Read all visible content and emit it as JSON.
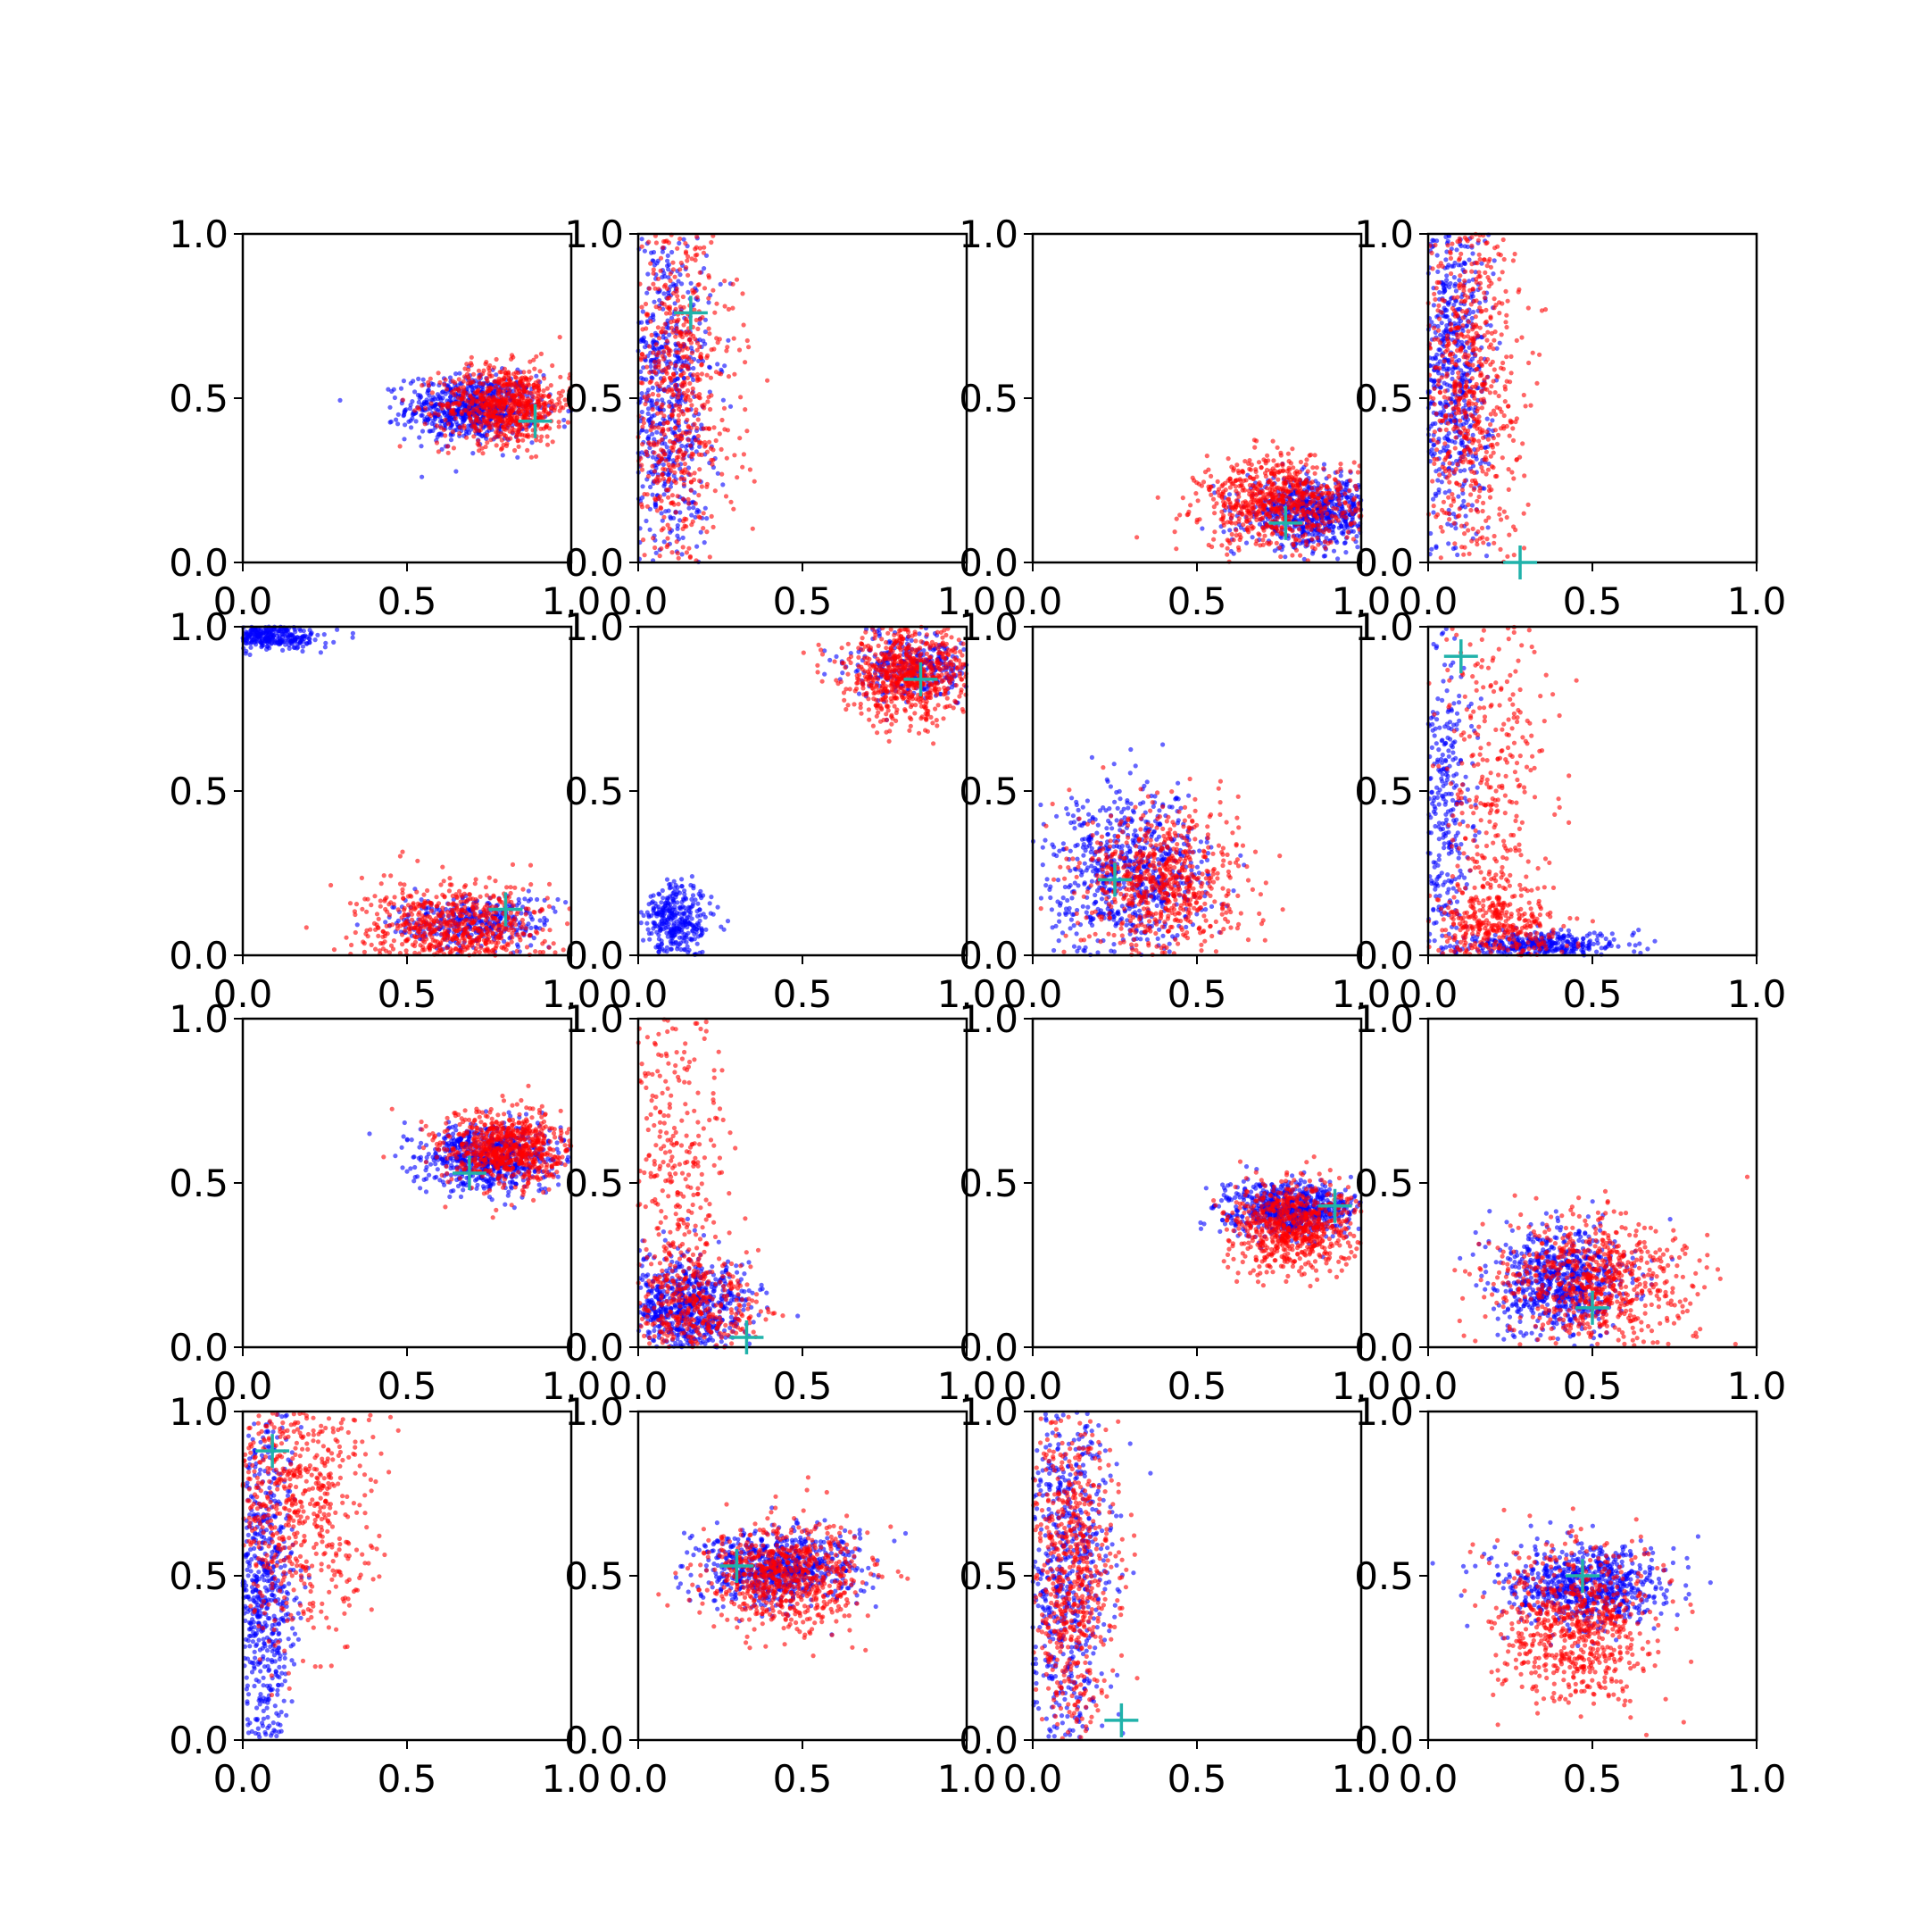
{
  "figure": {
    "rows": 4,
    "cols": 4,
    "xlim": [
      0,
      1
    ],
    "ylim": [
      0,
      1
    ],
    "ticks": [
      0.0,
      0.5,
      1.0
    ],
    "tick_labels": [
      "0.0",
      "0.5",
      "1.0"
    ]
  },
  "colors": {
    "series_a": "#0000ff",
    "series_b": "#ff0000",
    "marker": "#20b2aa",
    "axes": "#000000"
  },
  "chart_data": [
    {
      "type": "scatter",
      "xlim": [
        0,
        1
      ],
      "ylim": [
        0,
        1
      ],
      "series": [
        {
          "color": "#0000ff",
          "centers": [
            {
              "cx": 0.7,
              "cy": 0.47,
              "sx": 0.1,
              "sy": 0.05
            }
          ]
        },
        {
          "color": "#ff0000",
          "centers": [
            {
              "cx": 0.8,
              "cy": 0.48,
              "sx": 0.1,
              "sy": 0.06
            }
          ]
        }
      ],
      "marker_point": {
        "x": 0.89,
        "y": 0.43
      }
    },
    {
      "type": "scatter",
      "xlim": [
        0,
        1
      ],
      "ylim": [
        0,
        1
      ],
      "series": [
        {
          "color": "#0000ff",
          "centers": [
            {
              "cx": 0.08,
              "cy": 0.5,
              "sx": 0.07,
              "sy": 0.3
            }
          ]
        },
        {
          "color": "#ff0000",
          "centers": [
            {
              "cx": 0.12,
              "cy": 0.5,
              "sx": 0.09,
              "sy": 0.3
            }
          ]
        }
      ],
      "marker_point": {
        "x": 0.16,
        "y": 0.76
      }
    },
    {
      "type": "scatter",
      "xlim": [
        0,
        1
      ],
      "ylim": [
        0,
        1
      ],
      "series": [
        {
          "color": "#0000ff",
          "centers": [
            {
              "cx": 0.85,
              "cy": 0.15,
              "sx": 0.1,
              "sy": 0.05
            }
          ]
        },
        {
          "color": "#ff0000",
          "centers": [
            {
              "cx": 0.75,
              "cy": 0.18,
              "sx": 0.12,
              "sy": 0.07
            }
          ]
        }
      ],
      "marker_point": {
        "x": 0.77,
        "y": 0.12
      }
    },
    {
      "type": "scatter",
      "xlim": [
        0,
        1
      ],
      "ylim": [
        0,
        1
      ],
      "series": [
        {
          "color": "#0000ff",
          "centers": [
            {
              "cx": 0.07,
              "cy": 0.6,
              "sx": 0.06,
              "sy": 0.28
            }
          ]
        },
        {
          "color": "#ff0000",
          "centers": [
            {
              "cx": 0.12,
              "cy": 0.55,
              "sx": 0.08,
              "sy": 0.3
            }
          ]
        }
      ],
      "marker_point": {
        "x": 0.28,
        "y": 0.0
      }
    },
    {
      "type": "scatter",
      "xlim": [
        0,
        1
      ],
      "ylim": [
        0,
        1
      ],
      "series": [
        {
          "color": "#0000ff",
          "centers": [
            {
              "cx": 0.7,
              "cy": 0.1,
              "sx": 0.12,
              "sy": 0.04
            },
            {
              "cx": 0.08,
              "cy": 0.97,
              "sx": 0.08,
              "sy": 0.02
            }
          ]
        },
        {
          "color": "#ff0000",
          "centers": [
            {
              "cx": 0.65,
              "cy": 0.08,
              "sx": 0.14,
              "sy": 0.07
            }
          ]
        }
      ],
      "marker_point": {
        "x": 0.8,
        "y": 0.14
      }
    },
    {
      "type": "scatter",
      "xlim": [
        0,
        1
      ],
      "ylim": [
        0,
        1
      ],
      "series": [
        {
          "color": "#0000ff",
          "centers": [
            {
              "cx": 0.85,
              "cy": 0.88,
              "sx": 0.1,
              "sy": 0.05
            },
            {
              "cx": 0.12,
              "cy": 0.1,
              "sx": 0.05,
              "sy": 0.06
            }
          ]
        },
        {
          "color": "#ff0000",
          "centers": [
            {
              "cx": 0.82,
              "cy": 0.85,
              "sx": 0.1,
              "sy": 0.07
            }
          ]
        }
      ],
      "marker_point": {
        "x": 0.86,
        "y": 0.84
      }
    },
    {
      "type": "scatter",
      "xlim": [
        0,
        1
      ],
      "ylim": [
        0,
        1
      ],
      "series": [
        {
          "color": "#0000ff",
          "centers": [
            {
              "cx": 0.3,
              "cy": 0.25,
              "sx": 0.12,
              "sy": 0.12
            }
          ]
        },
        {
          "color": "#ff0000",
          "centers": [
            {
              "cx": 0.4,
              "cy": 0.22,
              "sx": 0.12,
              "sy": 0.12
            }
          ]
        }
      ],
      "marker_point": {
        "x": 0.25,
        "y": 0.23
      }
    },
    {
      "type": "scatter",
      "xlim": [
        0,
        1
      ],
      "ylim": [
        0,
        1
      ],
      "series": [
        {
          "color": "#0000ff",
          "centers": [
            {
              "cx": 0.05,
              "cy": 0.45,
              "sx": 0.04,
              "sy": 0.3
            },
            {
              "cx": 0.35,
              "cy": 0.03,
              "sx": 0.12,
              "sy": 0.02
            }
          ]
        },
        {
          "color": "#ff0000",
          "centers": [
            {
              "cx": 0.2,
              "cy": 0.5,
              "sx": 0.09,
              "sy": 0.3
            },
            {
              "cx": 0.2,
              "cy": 0.08,
              "sx": 0.1,
              "sy": 0.06
            }
          ]
        }
      ],
      "marker_point": {
        "x": 0.1,
        "y": 0.91
      }
    },
    {
      "type": "scatter",
      "xlim": [
        0,
        1
      ],
      "ylim": [
        0,
        1
      ],
      "series": [
        {
          "color": "#0000ff",
          "centers": [
            {
              "cx": 0.75,
              "cy": 0.58,
              "sx": 0.1,
              "sy": 0.05
            }
          ]
        },
        {
          "color": "#ff0000",
          "centers": [
            {
              "cx": 0.8,
              "cy": 0.6,
              "sx": 0.1,
              "sy": 0.06
            }
          ]
        }
      ],
      "marker_point": {
        "x": 0.69,
        "y": 0.53
      }
    },
    {
      "type": "scatter",
      "xlim": [
        0,
        1
      ],
      "ylim": [
        0,
        1
      ],
      "series": [
        {
          "color": "#0000ff",
          "centers": [
            {
              "cx": 0.15,
              "cy": 0.12,
              "sx": 0.1,
              "sy": 0.08
            }
          ]
        },
        {
          "color": "#ff0000",
          "centers": [
            {
              "cx": 0.12,
              "cy": 0.5,
              "sx": 0.08,
              "sy": 0.3
            },
            {
              "cx": 0.18,
              "cy": 0.12,
              "sx": 0.1,
              "sy": 0.08
            }
          ]
        }
      ],
      "marker_point": {
        "x": 0.33,
        "y": 0.03
      }
    },
    {
      "type": "scatter",
      "xlim": [
        0,
        1
      ],
      "ylim": [
        0,
        1
      ],
      "series": [
        {
          "color": "#0000ff",
          "centers": [
            {
              "cx": 0.78,
              "cy": 0.42,
              "sx": 0.1,
              "sy": 0.04
            }
          ]
        },
        {
          "color": "#ff0000",
          "centers": [
            {
              "cx": 0.8,
              "cy": 0.37,
              "sx": 0.1,
              "sy": 0.07
            }
          ]
        }
      ],
      "marker_point": {
        "x": 0.92,
        "y": 0.43
      }
    },
    {
      "type": "scatter",
      "xlim": [
        0,
        1
      ],
      "ylim": [
        0,
        1
      ],
      "series": [
        {
          "color": "#0000ff",
          "centers": [
            {
              "cx": 0.4,
              "cy": 0.2,
              "sx": 0.1,
              "sy": 0.08
            }
          ]
        },
        {
          "color": "#ff0000",
          "centers": [
            {
              "cx": 0.5,
              "cy": 0.2,
              "sx": 0.15,
              "sy": 0.1
            }
          ]
        }
      ],
      "marker_point": {
        "x": 0.5,
        "y": 0.12
      }
    },
    {
      "type": "scatter",
      "xlim": [
        0,
        1
      ],
      "ylim": [
        0,
        1
      ],
      "series": [
        {
          "color": "#0000ff",
          "centers": [
            {
              "cx": 0.06,
              "cy": 0.45,
              "sx": 0.05,
              "sy": 0.3
            }
          ]
        },
        {
          "color": "#ff0000",
          "centers": [
            {
              "cx": 0.15,
              "cy": 0.7,
              "sx": 0.12,
              "sy": 0.2
            }
          ]
        }
      ],
      "marker_point": {
        "x": 0.09,
        "y": 0.88
      }
    },
    {
      "type": "scatter",
      "xlim": [
        0,
        1
      ],
      "ylim": [
        0,
        1
      ],
      "series": [
        {
          "color": "#0000ff",
          "centers": [
            {
              "cx": 0.42,
              "cy": 0.52,
              "sx": 0.12,
              "sy": 0.06
            }
          ]
        },
        {
          "color": "#ff0000",
          "centers": [
            {
              "cx": 0.45,
              "cy": 0.5,
              "sx": 0.12,
              "sy": 0.08
            }
          ]
        }
      ],
      "marker_point": {
        "x": 0.3,
        "y": 0.53
      }
    },
    {
      "type": "scatter",
      "xlim": [
        0,
        1
      ],
      "ylim": [
        0,
        1
      ],
      "series": [
        {
          "color": "#0000ff",
          "centers": [
            {
              "cx": 0.1,
              "cy": 0.55,
              "sx": 0.07,
              "sy": 0.3
            }
          ]
        },
        {
          "color": "#ff0000",
          "centers": [
            {
              "cx": 0.12,
              "cy": 0.5,
              "sx": 0.07,
              "sy": 0.3
            }
          ]
        }
      ],
      "marker_point": {
        "x": 0.27,
        "y": 0.06
      }
    },
    {
      "type": "scatter",
      "xlim": [
        0,
        1
      ],
      "ylim": [
        0,
        1
      ],
      "series": [
        {
          "color": "#0000ff",
          "centers": [
            {
              "cx": 0.48,
              "cy": 0.47,
              "sx": 0.12,
              "sy": 0.06
            }
          ]
        },
        {
          "color": "#ff0000",
          "centers": [
            {
              "cx": 0.45,
              "cy": 0.35,
              "sx": 0.12,
              "sy": 0.12
            }
          ]
        }
      ],
      "marker_point": {
        "x": 0.47,
        "y": 0.5
      }
    }
  ]
}
